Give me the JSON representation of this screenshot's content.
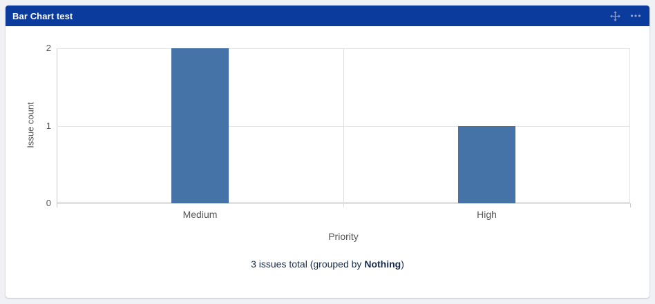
{
  "header": {
    "title": "Bar Chart test",
    "icons": [
      {
        "name": "move-icon"
      },
      {
        "name": "more-options-icon"
      }
    ]
  },
  "footer": {
    "text_before": "3 issues total (grouped by ",
    "bold": "Nothing",
    "text_after": ")"
  },
  "colors": {
    "page_bg": "#F0F1F4",
    "header_bg": "#0C3B9E",
    "header_icon": "#8FA0CE",
    "bar": "#4572A7",
    "grid": "#E6E6E6",
    "axis": "#999999",
    "tick_text": "#545454",
    "footer_text": "#172B4D"
  },
  "chart_data": {
    "type": "bar",
    "categories": [
      "Medium",
      "High"
    ],
    "values": [
      2,
      1
    ],
    "title": "",
    "xlabel": "Priority",
    "ylabel": "Issue count",
    "ylim": [
      0,
      2
    ],
    "yticks": [
      0,
      1,
      2
    ],
    "grid": true,
    "legend": false,
    "bar_band_fraction": 0.2
  }
}
